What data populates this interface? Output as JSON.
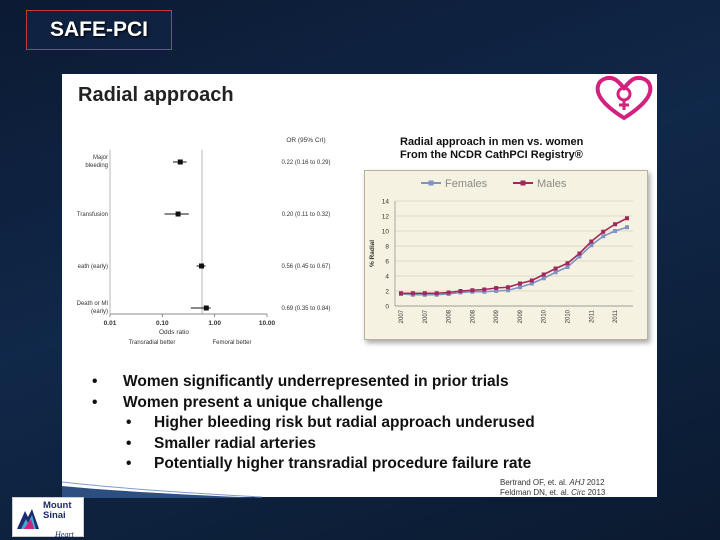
{
  "header": {
    "title": "SAFE-PCI"
  },
  "slide": {
    "title": "Radial approach",
    "forest_plot": {
      "column_header": "OR (95% CrI)",
      "rows": [
        {
          "label1": "Major",
          "label2": "bleeding",
          "ci": "0.22 (0.16 to 0.29)",
          "or": 0.22,
          "lo": 0.16,
          "hi": 0.29
        },
        {
          "label1": "Transfusion",
          "label2": "",
          "ci": "0.20 (0.11 to 0.32)",
          "or": 0.2,
          "lo": 0.11,
          "hi": 0.32
        },
        {
          "label1": "eath (early)",
          "label2": "",
          "ci": "0.56 (0.45 to 0.67)",
          "or": 0.56,
          "lo": 0.45,
          "hi": 0.67
        },
        {
          "label1": "Death or MI",
          "label2": "(early)",
          "ci": "0.69 (0.35 to 0.84)",
          "or": 0.69,
          "lo": 0.35,
          "hi": 0.84
        }
      ],
      "ticks": [
        "0.01",
        "0.10",
        "1.00",
        "10.00"
      ],
      "xlabel": "Odds ratio",
      "left_note": "Transradial better",
      "right_note": "Femoral better"
    },
    "chart_title_1": "Radial approach in men vs. women",
    "chart_title_2": "From the NCDR CathPCI Registry®",
    "bullets": [
      "Women significantly underrepresented in prior trials",
      "Women present a unique challenge"
    ],
    "sub_bullets": [
      "Higher bleeding risk but radial approach underused",
      "Smaller radial arteries",
      "Potentially higher transradial procedure failure rate"
    ],
    "bullet_glyph": "•",
    "refs": [
      {
        "text": "Bertrand OF, et. al. ",
        "journal": "AHJ",
        "year": " 2012"
      },
      {
        "text": "Feldman DN, et. al. ",
        "journal": "Circ",
        "year": " 2013"
      }
    ]
  },
  "footer_logo": {
    "line1": "Mount",
    "line2": "Sinai",
    "line3": "Heart"
  },
  "chart_data": {
    "type": "line",
    "title": "",
    "xlabel": "",
    "ylabel": "% Radial",
    "categories": [
      "2007-1",
      "2007-2",
      "2007-3",
      "2007-4",
      "2008-1",
      "2008-2",
      "2008-3",
      "2008-4",
      "2009-1",
      "2009-2",
      "2009-3",
      "2009-4",
      "2010-1",
      "2010-2",
      "2010-3",
      "2010-4",
      "2011-1",
      "2011-2",
      "2011-3",
      "2011-4"
    ],
    "tick_labels": [
      "2007",
      "2007",
      "2008",
      "2008",
      "2009",
      "2009",
      "2010",
      "2010",
      "2011",
      "2011"
    ],
    "yticks": [
      0,
      2,
      4,
      6,
      8,
      10,
      12,
      14
    ],
    "ylim": [
      0,
      14
    ],
    "legend": "top",
    "grid": true,
    "series": [
      {
        "name": "Females",
        "color": "#7f93c4",
        "values": [
          1.6,
          1.5,
          1.5,
          1.5,
          1.6,
          1.8,
          1.9,
          1.9,
          2.0,
          2.1,
          2.5,
          3.0,
          3.7,
          4.5,
          5.2,
          6.6,
          8.1,
          9.3,
          10.0,
          10.5
        ]
      },
      {
        "name": "Males",
        "color": "#a0285a",
        "values": [
          1.7,
          1.7,
          1.7,
          1.7,
          1.8,
          2.0,
          2.1,
          2.2,
          2.4,
          2.5,
          3.0,
          3.4,
          4.2,
          5.0,
          5.7,
          7.0,
          8.6,
          9.9,
          10.9,
          11.7
        ]
      }
    ]
  }
}
